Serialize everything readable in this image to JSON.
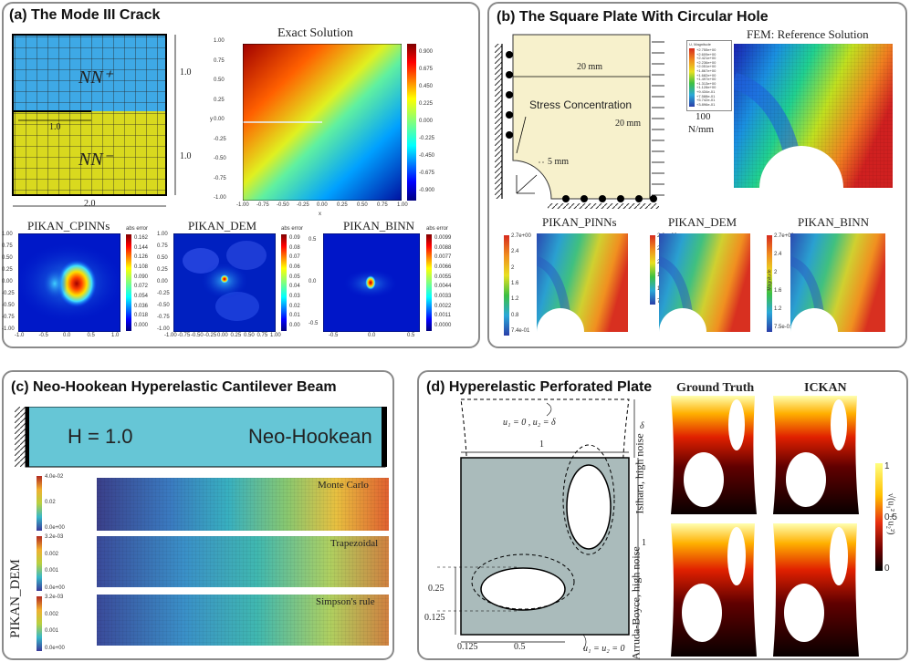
{
  "panel_a": {
    "title": "(a) The Mode III Crack",
    "nn_plus": "NN⁺",
    "nn_minus": "NN⁻",
    "dim_h1": "1.0",
    "dim_h2": "1.0",
    "dim_w": "2.0",
    "dim_crack": "1.0",
    "exact_title": "Exact Solution",
    "exact_xlabel": "x",
    "exact_ylabel": "y",
    "exact_xticks": [
      "-1.00",
      "-0.75",
      "-0.50",
      "-0.25",
      "0.00",
      "0.25",
      "0.50",
      "0.75",
      "1.00"
    ],
    "exact_yticks": [
      "1.00",
      "0.75",
      "0.50",
      "0.25",
      "0.00",
      "-0.25",
      "-0.50",
      "-0.75",
      "-1.00"
    ],
    "exact_cbar": [
      "0.900",
      "0.675",
      "0.450",
      "0.225",
      "0.000",
      "-0.225",
      "-0.450",
      "-0.675",
      "-0.900"
    ],
    "err_titles": [
      "PIKAN_CPINNs",
      "PIKAN_DEM",
      "PIKAN_BINN"
    ],
    "err_label": "abs error",
    "cbar1": [
      "0.162",
      "0.144",
      "0.126",
      "0.108",
      "0.090",
      "0.072",
      "0.054",
      "0.036",
      "0.018",
      "0.000"
    ],
    "cbar2": [
      "0.09",
      "0.08",
      "0.07",
      "0.06",
      "0.05",
      "0.04",
      "0.03",
      "0.02",
      "0.01",
      "0.00"
    ],
    "cbar3": [
      "0.0099",
      "0.0088",
      "0.0077",
      "0.0066",
      "0.0055",
      "0.0044",
      "0.0033",
      "0.0022",
      "0.0011",
      "0.0000"
    ],
    "err1_xticks": [
      "-1.0",
      "-0.5",
      "0.0",
      "0.5",
      "1.0"
    ],
    "err1_yticks": [
      "1.00",
      "0.75",
      "0.50",
      "0.25",
      "0.00",
      "-0.25",
      "-0.50",
      "-0.75",
      "-1.00"
    ],
    "err2_xticks": [
      "-1.00",
      "-0.75",
      "-0.50",
      "-0.25",
      "0.00",
      "0.25",
      "0.50",
      "0.75",
      "1.00"
    ],
    "err2_yticks": [
      "1.00",
      "0.75",
      "0.50",
      "0.25",
      "0.00",
      "-0.25",
      "-0.50",
      "-0.75",
      "-1.00"
    ],
    "err3_xticks": [
      "-0.5",
      "0.0",
      "0.5"
    ],
    "err3_yticks": [
      "0.5",
      "0.0",
      "-0.5"
    ]
  },
  "panel_b": {
    "title": "(b) The Square Plate With Circular Hole",
    "dim_top": "20 mm",
    "dim_side": "20 mm",
    "load": "100",
    "load_unit": "N/mm",
    "stress_label": "Stress Concentration",
    "radius": "5 mm",
    "fem_title": "FEM: Reference Solution",
    "legend_title": "U, Magnitude",
    "legend_values": [
      "+2.755e+00",
      "+2.609e+00",
      "+2.421e+00",
      "+2.236e+00",
      "+2.051e+00",
      "+1.867e+00",
      "+1.682e+00",
      "+1.497e+00",
      "+1.313e+00",
      "+1.128e+00",
      "+9.434e-01",
      "+7.588e-01",
      "+5.742e-01",
      "+3.896e-01"
    ],
    "sub_titles": [
      "PIKAN_PINNs",
      "PIKAN_DEM",
      "PIKAN_BINN"
    ],
    "cb1_ticks": [
      "2.7e+00",
      "2.4",
      "2",
      "1.6",
      "1.2",
      "0.8",
      "7.4e-01"
    ],
    "cb2_ticks": [
      "2.6e+00",
      "2.4",
      "2",
      "1.6",
      "1.2",
      "7.4e-01"
    ],
    "cb3_ticks": [
      "2.7e+00",
      "2.4",
      "2",
      "1.6",
      "1.2",
      "7.5e-01"
    ],
    "cb_axis_label": "Magnitude"
  },
  "panel_c": {
    "title": "(c) Neo-Hookean Hyperelastic Cantilever Beam",
    "h_label": "H = 1.0",
    "material": "Neo-Hookean",
    "side_label": "PIKAN_DEM",
    "rows": [
      {
        "name": "Monte Carlo",
        "ticks": [
          "4.0e-02",
          "0.02",
          "0.0e+00"
        ]
      },
      {
        "name": "Trapezoidal",
        "ticks": [
          "3.2e-03",
          "0.002",
          "0.001",
          "0.0e+00"
        ]
      },
      {
        "name": "Simpson's rule",
        "ticks": [
          "3.2e-03",
          "0.002",
          "0.001",
          "0.0e+00"
        ]
      }
    ]
  },
  "panel_d": {
    "title": "(d) Hyperelastic Perforated Plate",
    "top_bc": "u₁ = 0 , u₂ = δ",
    "bottom_bc": "u₁ = u₂ = 0",
    "delta": "δ",
    "width": "1",
    "height": "1",
    "d1": "0.25",
    "d2": "0.125",
    "d3": "0.125",
    "d4": "0.5",
    "col_titles": [
      "Ground Truth",
      "ICKAN"
    ],
    "row_labels": [
      "Isihara, high noise",
      "Arruda-Boyce, high noise"
    ],
    "cbar_ticks": [
      "1",
      "0.5",
      "0"
    ],
    "cbar_label": "√(u₁² + u₂²)"
  },
  "colors": {
    "blue_region": "#3ea9e6",
    "yellow_region": "#d9d91e",
    "plate": "#f7f1cc",
    "beam": "#66c6d6",
    "perforated": "#aabbbb"
  }
}
